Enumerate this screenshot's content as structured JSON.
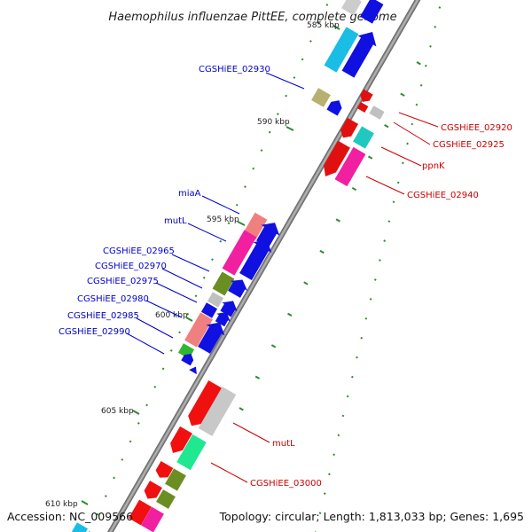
{
  "map": {
    "title": "Haemophilus influenzae PittEE, complete genome",
    "accession_text": "Accession: NC_009566",
    "summary_text": "Topology: circular; Length: 1,813,033 bp; Genes: 1,695",
    "ticks": [
      {
        "id": "tick-585",
        "label": "585 kbp"
      },
      {
        "id": "tick-590",
        "label": "590 kbp"
      },
      {
        "id": "tick-595",
        "label": "595 kbp"
      },
      {
        "id": "tick-600",
        "label": "600 kbp"
      },
      {
        "id": "tick-605",
        "label": "605 kbp"
      },
      {
        "id": "tick-610",
        "label": "610 kbp"
      }
    ],
    "left_labels": [
      {
        "id": "cgshiee-02930",
        "text": "CGSHiEE_02930"
      },
      {
        "id": "miaa",
        "text": "miaA"
      },
      {
        "id": "mutl-left",
        "text": "mutL"
      },
      {
        "id": "cgshiee-02965",
        "text": "CGSHiEE_02965"
      },
      {
        "id": "cgshiee-02970",
        "text": "CGSHiEE_02970"
      },
      {
        "id": "cgshiee-02975",
        "text": "CGSHiEE_02975"
      },
      {
        "id": "cgshiee-02980",
        "text": "CGSHiEE_02980"
      },
      {
        "id": "cgshiee-02985",
        "text": "CGSHiEE_02985"
      },
      {
        "id": "cgshiee-02990",
        "text": "CGSHiEE_02990"
      }
    ],
    "right_labels": [
      {
        "id": "cgshiee-02920",
        "text": "CGSHiEE_02920"
      },
      {
        "id": "cgshiee-02925",
        "text": "CGSHiEE_02925"
      },
      {
        "id": "ppnk",
        "text": "ppnK"
      },
      {
        "id": "cgshiee-02940",
        "text": "CGSHiEE_02940"
      },
      {
        "id": "mutl-right",
        "text": "mutL"
      },
      {
        "id": "cgshiee-03000",
        "text": "CGSHiEE_03000"
      }
    ],
    "colors": {
      "backbone": "#777777",
      "label_left": "#0000cc",
      "label_right": "#cc0000",
      "gc_ticks": "#2e8b2e",
      "outer_ticks": "#2e8b2e"
    }
  }
}
